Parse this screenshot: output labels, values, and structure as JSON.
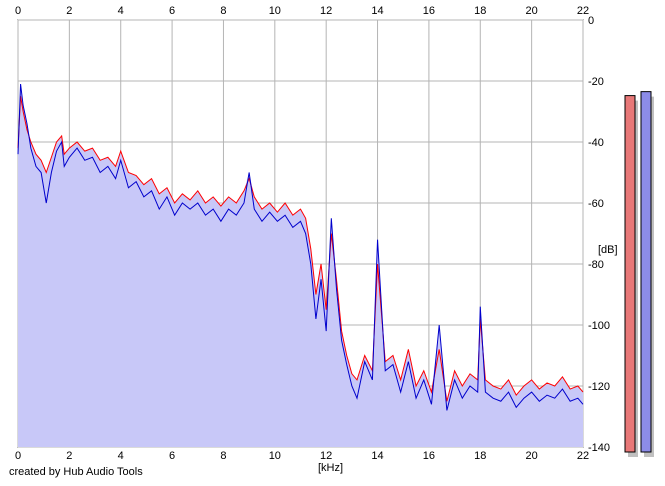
{
  "credit": "created by Hub Audio Tools",
  "chart_data": {
    "type": "line",
    "xlabel": "[kHz]",
    "ylabel": "[dB]",
    "xlim": [
      0,
      22
    ],
    "ylim": [
      -140,
      0
    ],
    "x_ticks": [
      "0",
      "2",
      "4",
      "6",
      "8",
      "10",
      "12",
      "14",
      "16",
      "18",
      "20",
      "22"
    ],
    "y_ticks": [
      "0",
      "-20",
      "-40",
      "-60",
      "-80",
      "-100",
      "-120",
      "-140"
    ],
    "grid": true,
    "colors": {
      "channel_1": "#ff0000",
      "channel_2": "#0000cc",
      "fill": "#c8c8f8",
      "meter_1": "#e87878",
      "meter_2": "#8c8ce8"
    },
    "series": [
      {
        "x": [
          0,
          0.1,
          0.2,
          0.35,
          0.5,
          0.7,
          0.9,
          1.1,
          1.3,
          1.5,
          1.7,
          1.8,
          2.0,
          2.3,
          2.6,
          2.9,
          3.2,
          3.5,
          3.8,
          4.0,
          4.3,
          4.6,
          4.9,
          5.2,
          5.5,
          5.8,
          6.1,
          6.4,
          6.7,
          7.0,
          7.3,
          7.6,
          7.9,
          8.2,
          8.5,
          8.8,
          9.0,
          9.2,
          9.5,
          9.8,
          10.1,
          10.4,
          10.7,
          11.0,
          11.2,
          11.4,
          11.6,
          11.8,
          12.0,
          12.2,
          12.4,
          12.6,
          12.8,
          13.0,
          13.2,
          13.5,
          13.8,
          14.0,
          14.3,
          14.6,
          14.9,
          15.2,
          15.5,
          15.8,
          16.1,
          16.4,
          16.7,
          17.0,
          17.3,
          17.6,
          17.9,
          18.0,
          18.2,
          18.5,
          18.8,
          19.1,
          19.4,
          19.7,
          20.0,
          20.3,
          20.6,
          20.9,
          21.2,
          21.5,
          21.8,
          22.0
        ],
        "y": [
          -42,
          -25,
          -30,
          -36,
          -40,
          -44,
          -46,
          -50,
          -45,
          -40,
          -38,
          -44,
          -42,
          -40,
          -43,
          -42,
          -46,
          -45,
          -48,
          -43,
          -50,
          -51,
          -54,
          -52,
          -57,
          -55,
          -60,
          -57,
          -59,
          -56,
          -60,
          -58,
          -61,
          -58,
          -60,
          -56,
          -52,
          -58,
          -62,
          -60,
          -63,
          -60,
          -64,
          -62,
          -65,
          -75,
          -90,
          -80,
          -95,
          -70,
          -85,
          -102,
          -110,
          -116,
          -118,
          -110,
          -115,
          -80,
          -112,
          -110,
          -118,
          -108,
          -120,
          -115,
          -122,
          -108,
          -125,
          -115,
          -120,
          -116,
          -118,
          -98,
          -118,
          -120,
          -121,
          -118,
          -123,
          -120,
          -118,
          -121,
          -119,
          -120,
          -117,
          -121,
          -120,
          -122
        ]
      },
      {
        "x": [
          0,
          0.1,
          0.2,
          0.35,
          0.5,
          0.7,
          0.9,
          1.1,
          1.3,
          1.5,
          1.7,
          1.8,
          2.0,
          2.3,
          2.6,
          2.9,
          3.2,
          3.5,
          3.8,
          4.0,
          4.3,
          4.6,
          4.9,
          5.2,
          5.5,
          5.8,
          6.1,
          6.4,
          6.7,
          7.0,
          7.3,
          7.6,
          7.9,
          8.2,
          8.5,
          8.8,
          9.0,
          9.2,
          9.5,
          9.8,
          10.1,
          10.4,
          10.7,
          11.0,
          11.2,
          11.4,
          11.6,
          11.8,
          12.0,
          12.2,
          12.4,
          12.6,
          12.8,
          13.0,
          13.2,
          13.5,
          13.8,
          14.0,
          14.3,
          14.6,
          14.9,
          15.2,
          15.5,
          15.8,
          16.1,
          16.4,
          16.7,
          17.0,
          17.3,
          17.6,
          17.9,
          18.0,
          18.2,
          18.5,
          18.8,
          19.1,
          19.4,
          19.7,
          20.0,
          20.3,
          20.6,
          20.9,
          21.2,
          21.5,
          21.8,
          22.0
        ],
        "y": [
          -44,
          -21,
          -28,
          -34,
          -42,
          -48,
          -50,
          -60,
          -50,
          -43,
          -40,
          -48,
          -45,
          -42,
          -46,
          -45,
          -50,
          -48,
          -52,
          -46,
          -55,
          -53,
          -58,
          -56,
          -62,
          -58,
          -64,
          -60,
          -62,
          -60,
          -64,
          -62,
          -66,
          -62,
          -64,
          -60,
          -50,
          -62,
          -66,
          -63,
          -66,
          -64,
          -68,
          -66,
          -70,
          -80,
          -98,
          -85,
          -102,
          -65,
          -88,
          -105,
          -113,
          -120,
          -124,
          -112,
          -118,
          -72,
          -115,
          -113,
          -122,
          -112,
          -124,
          -118,
          -126,
          -100,
          -128,
          -118,
          -124,
          -120,
          -122,
          -94,
          -122,
          -124,
          -125,
          -122,
          -127,
          -124,
          -122,
          -125,
          -123,
          -124,
          -121,
          -125,
          -124,
          -126
        ]
      }
    ],
    "meters": [
      {
        "level": 0.9
      },
      {
        "level": 0.91
      }
    ]
  }
}
